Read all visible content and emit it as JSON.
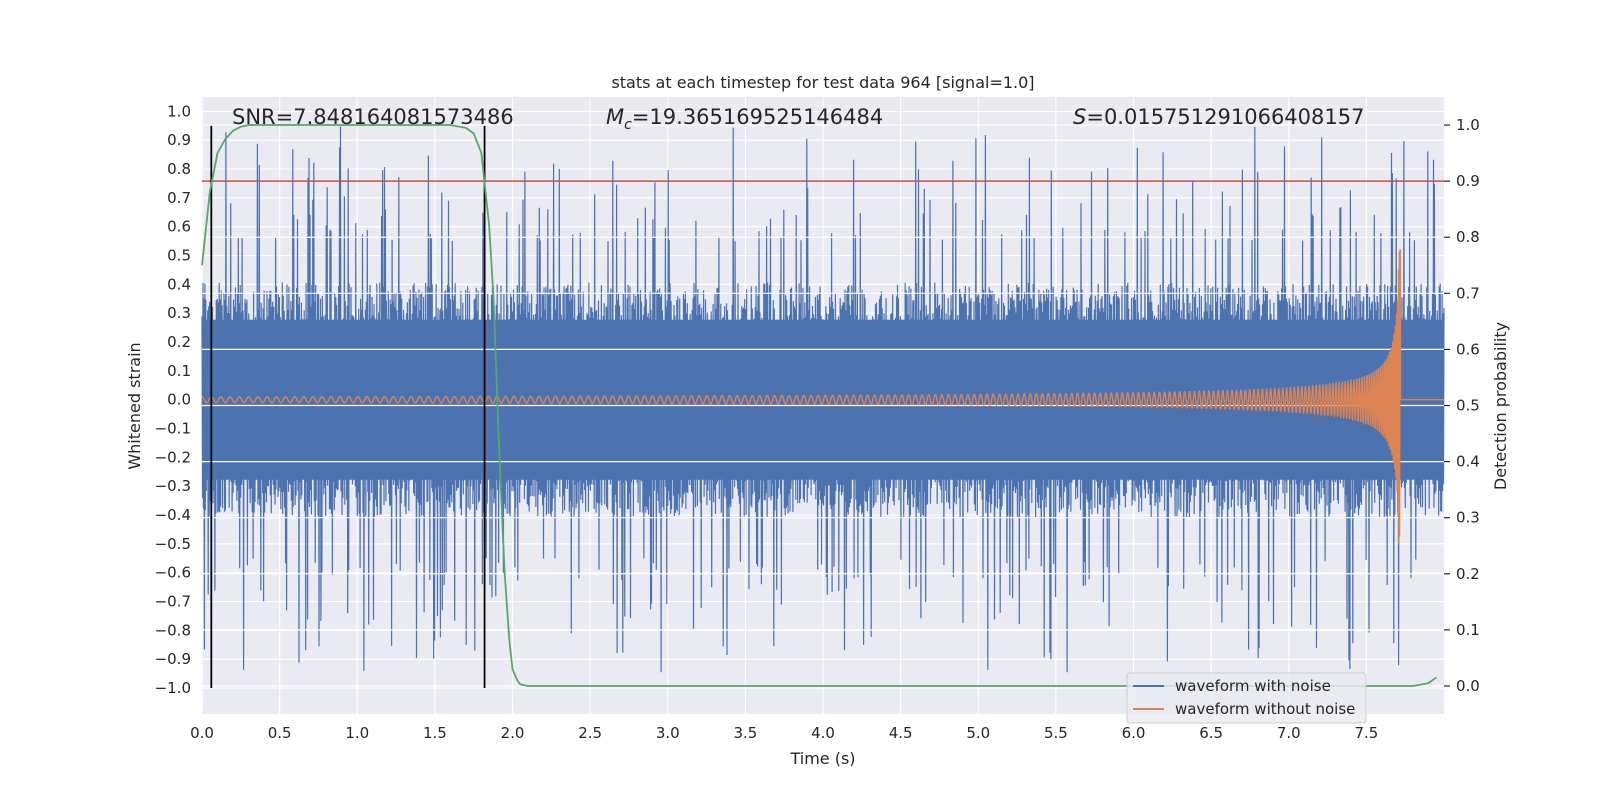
{
  "chart_data": {
    "type": "line",
    "title": "stats at each timestep for test data 964 [signal=1.0]",
    "xlabel": "Time (s)",
    "ylabel_left": "Whitened strain",
    "ylabel_right": "Detection probability",
    "xlim": [
      0.0,
      8.0
    ],
    "ylim_left": [
      -1.09,
      1.05
    ],
    "ylim_right": [
      -0.05,
      1.05
    ],
    "x_ticks": [
      0.0,
      0.5,
      1.0,
      1.5,
      2.0,
      2.5,
      3.0,
      3.5,
      4.0,
      4.5,
      5.0,
      5.5,
      6.0,
      6.5,
      7.0,
      7.5
    ],
    "x_tick_labels": [
      "0.0",
      "0.5",
      "1.0",
      "1.5",
      "2.0",
      "2.5",
      "3.0",
      "3.5",
      "4.0",
      "4.5",
      "5.0",
      "5.5",
      "6.0",
      "6.5",
      "7.0",
      "7.5"
    ],
    "y_left_ticks": [
      1.0,
      0.9,
      0.8,
      0.7,
      0.6,
      0.5,
      0.4,
      0.3,
      0.2,
      0.1,
      0.0,
      -0.1,
      -0.2,
      -0.3,
      -0.4,
      -0.5,
      -0.6,
      -0.7,
      -0.8,
      -0.9,
      -1.0
    ],
    "y_left_tick_labels": [
      "1.0",
      "0.9",
      "0.8",
      "0.7",
      "0.6",
      "0.5",
      "0.4",
      "0.3",
      "0.2",
      "0.1",
      "0.0",
      "−0.1",
      "−0.2",
      "−0.3",
      "−0.4",
      "−0.5",
      "−0.6",
      "−0.7",
      "−0.8",
      "−0.9",
      "−1.0"
    ],
    "y_right_ticks": [
      1.0,
      0.9,
      0.8,
      0.7,
      0.6,
      0.5,
      0.4,
      0.3,
      0.2,
      0.1,
      0.0
    ],
    "y_right_tick_labels": [
      "1.0",
      "0.9",
      "0.8",
      "0.7",
      "0.6",
      "0.5",
      "0.4",
      "0.3",
      "0.2",
      "0.1",
      "0.0"
    ],
    "annotations": {
      "snr": "SNR=7.848164081573486",
      "mc_symbol": "M",
      "mc_sub": "c",
      "mc_value": "=19.365169525146484",
      "s_symbol": "S",
      "s_value": "=0.015751291066408157"
    },
    "threshold": {
      "axis": "right",
      "value": 0.9,
      "color": "#c44e52"
    },
    "vertical_markers": [
      0.06,
      1.82
    ],
    "noisy_waveform": {
      "name": "waveform with noise",
      "color": "#4c72b0",
      "axis": "left",
      "core_amplitude": 0.37,
      "peak_range": [
        0.55,
        0.95
      ],
      "x_range": [
        0.0,
        8.0
      ]
    },
    "clean_waveform": {
      "name": "waveform without noise",
      "color": "#dd8452",
      "axis": "left",
      "type": "chirp",
      "merger_time": 7.72,
      "start_amplitude": 0.01,
      "peak_amplitude": 0.52,
      "min_peak": -0.5
    },
    "detection_probability": {
      "color": "#55a868",
      "axis": "right",
      "x": [
        0.0,
        0.05,
        0.1,
        0.15,
        0.2,
        0.25,
        0.3,
        0.35,
        0.4,
        0.5,
        0.6,
        0.8,
        1.0,
        1.2,
        1.4,
        1.6,
        1.7,
        1.75,
        1.8,
        1.85,
        1.88,
        1.9,
        1.92,
        1.95,
        1.98,
        2.0,
        2.03,
        2.05,
        2.1,
        2.2,
        3.0,
        4.0,
        5.0,
        6.0,
        7.0,
        7.5,
        7.8,
        7.9,
        7.95
      ],
      "y": [
        0.75,
        0.88,
        0.95,
        0.975,
        0.99,
        0.997,
        1.0,
        1.0,
        1.0,
        1.0,
        1.0,
        1.0,
        1.0,
        1.0,
        1.0,
        1.0,
        0.995,
        0.985,
        0.95,
        0.82,
        0.68,
        0.52,
        0.38,
        0.2,
        0.08,
        0.03,
        0.01,
        0.003,
        0.0,
        0.0,
        0.0,
        0.0,
        0.0,
        0.0,
        0.0,
        0.0,
        0.0,
        0.005,
        0.015
      ]
    },
    "legend": {
      "location": "bottom-right",
      "entries": [
        {
          "label": "waveform with noise",
          "color": "#4c72b0"
        },
        {
          "label": "waveform without noise",
          "color": "#dd8452"
        }
      ]
    }
  }
}
